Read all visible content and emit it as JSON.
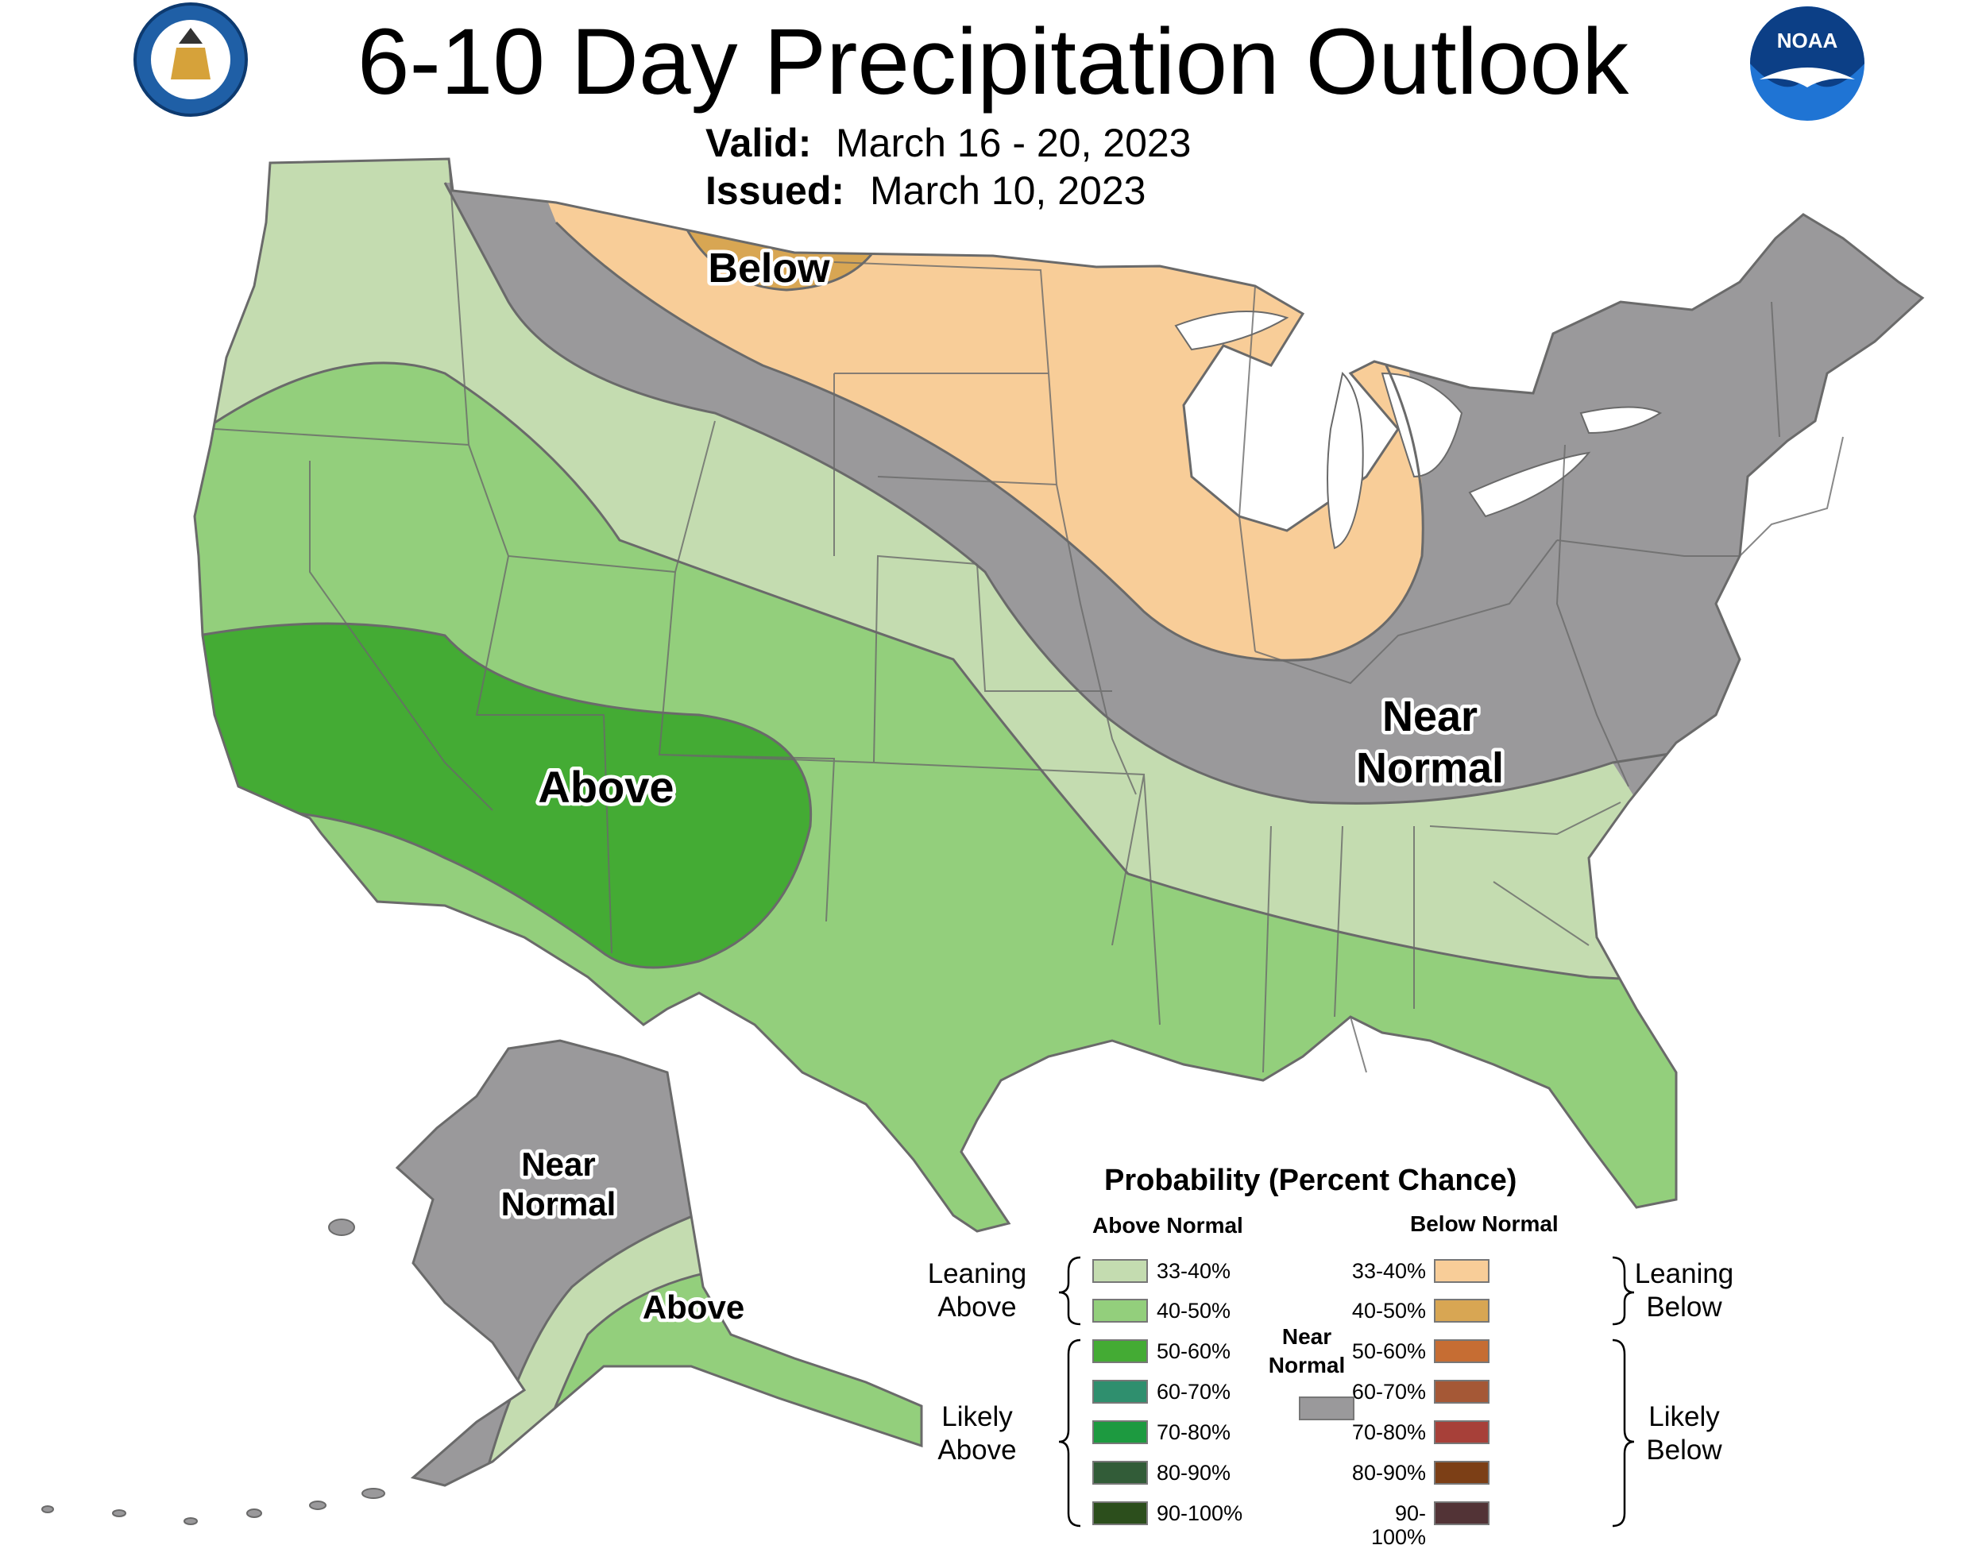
{
  "title": "6-10 Day Precipitation Outlook",
  "valid_label": "Valid:",
  "valid_value": "March 16 - 20, 2023",
  "issued_label": "Issued:",
  "issued_value": "March 10, 2023",
  "logos": {
    "left": "department-of-commerce-seal",
    "right": "noaa-logo"
  },
  "regions": {
    "below_north": "Below",
    "near_normal_east_1": "Near",
    "near_normal_east_2": "Normal",
    "above_southwest": "Above",
    "alaska_near_1": "Near",
    "alaska_near_2": "Normal",
    "alaska_above": "Above"
  },
  "colors": {
    "above_33_40": "#c4dcb0",
    "above_40_50": "#93cf7c",
    "above_50_60": "#44ab34",
    "above_60_70": "#2f8f6e",
    "above_70_80": "#1d9a40",
    "above_80_90": "#325c38",
    "above_90_100": "#2c4e1c",
    "near_normal": "#9a999b",
    "below_33_40": "#f8cd98",
    "below_40_50": "#d8a653",
    "below_50_60": "#c66d33",
    "below_60_70": "#a55836",
    "below_70_80": "#a74039",
    "below_80_90": "#7c3f16",
    "below_90_100": "#523336",
    "border": "#6a6a6a",
    "water": "#ffffff"
  },
  "legend": {
    "title": "Probability (Percent Chance)",
    "above_header": "Above Normal",
    "below_header": "Below Normal",
    "near_label_1": "Near",
    "near_label_2": "Normal",
    "leaning_above_1": "Leaning",
    "leaning_above_2": "Above",
    "likely_above_1": "Likely",
    "likely_above_2": "Above",
    "leaning_below_1": "Leaning",
    "leaning_below_2": "Below",
    "likely_below_1": "Likely",
    "likely_below_2": "Below",
    "ranges": [
      "33-40%",
      "40-50%",
      "50-60%",
      "60-70%",
      "70-80%",
      "80-90%",
      "90-100%"
    ]
  }
}
